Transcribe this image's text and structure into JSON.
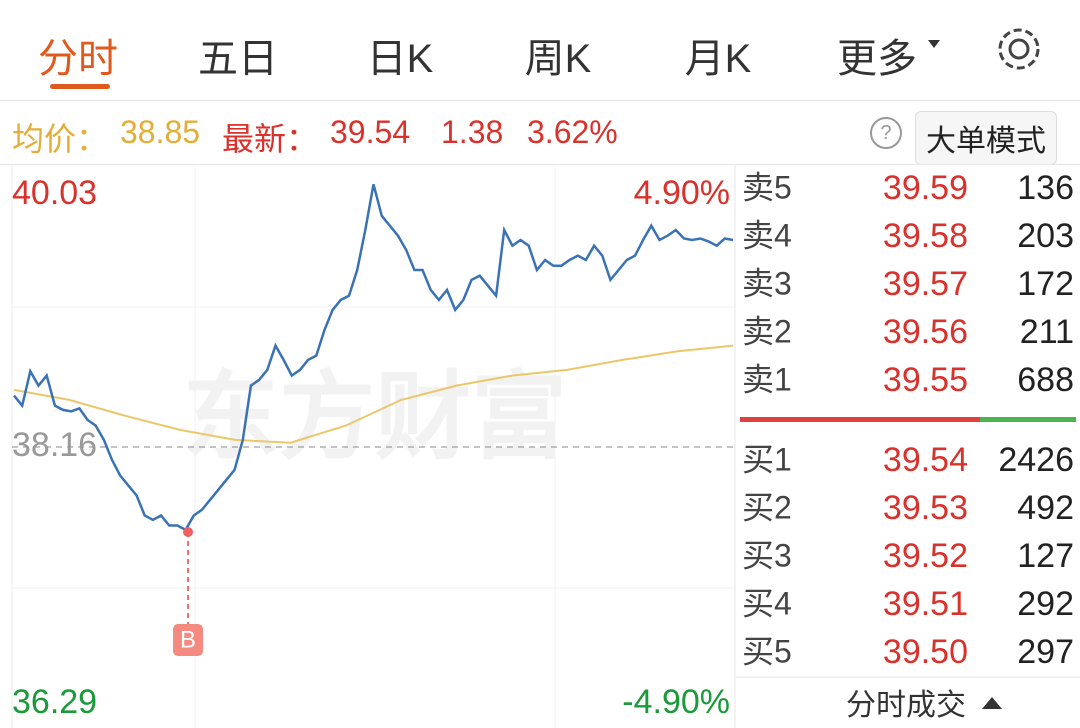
{
  "tabs": [
    "分时",
    "五日",
    "日K",
    "周K",
    "月K",
    "更多"
  ],
  "info": {
    "avg_label": "均价：",
    "avg": "38.85",
    "latest_label": "最新：",
    "latest": "39.54",
    "change": "1.38",
    "change_pct": "3.62%",
    "mode_button": "大单模式"
  },
  "chart_data": {
    "type": "line",
    "watermark": "东方财富",
    "marker": "B",
    "ylim": [
      36.29,
      40.03
    ],
    "yticks": [
      36.29,
      38.16,
      40.03
    ],
    "y2lim": [
      -4.9,
      4.9
    ],
    "y2ticks": [
      {
        "value": -4.9,
        "label": "-4.90%"
      },
      {
        "value": 4.9,
        "label": "4.90%"
      }
    ],
    "series": [
      {
        "color": "#3a72b6",
        "values": [
          38.52,
          38.45,
          38.69,
          38.59,
          38.66,
          38.45,
          38.42,
          38.41,
          38.43,
          38.35,
          38.31,
          38.21,
          38.07,
          37.96,
          37.89,
          37.82,
          37.68,
          37.65,
          37.68,
          37.61,
          37.61,
          37.58,
          37.68,
          37.72,
          37.79,
          37.86,
          37.93,
          38.0,
          38.21,
          38.59,
          38.63,
          38.7,
          38.87,
          38.77,
          38.66,
          38.7,
          38.77,
          38.8,
          38.98,
          39.12,
          39.19,
          39.22,
          39.4,
          39.68,
          40.0,
          39.78,
          39.71,
          39.64,
          39.54,
          39.4,
          39.4,
          39.26,
          39.19,
          39.26,
          39.12,
          39.19,
          39.33,
          39.36,
          39.29,
          39.22,
          39.68,
          39.57,
          39.61,
          39.57,
          39.4,
          39.47,
          39.43,
          39.43,
          39.47,
          39.5,
          39.47,
          39.57,
          39.5,
          39.33,
          39.4,
          39.47,
          39.5,
          39.61,
          39.71,
          39.61,
          39.64,
          39.68,
          39.62,
          39.61,
          39.62,
          39.6,
          39.57,
          39.62,
          39.61
        ]
      },
      {
        "color": "#ecc66a",
        "values": [
          38.56,
          38.49,
          38.38,
          38.28,
          38.21,
          38.19,
          38.31,
          38.49,
          38.59,
          38.66,
          38.7,
          38.77,
          38.83,
          38.87
        ]
      }
    ]
  },
  "order_book": {
    "asks": [
      {
        "label": "卖5",
        "price": "39.59",
        "volume": "136"
      },
      {
        "label": "卖4",
        "price": "39.58",
        "volume": "203"
      },
      {
        "label": "卖3",
        "price": "39.57",
        "volume": "172"
      },
      {
        "label": "卖2",
        "price": "39.56",
        "volume": "211"
      },
      {
        "label": "卖1",
        "price": "39.55",
        "volume": "688"
      }
    ],
    "bids": [
      {
        "label": "买1",
        "price": "39.54",
        "volume": "2426"
      },
      {
        "label": "买2",
        "price": "39.53",
        "volume": "492"
      },
      {
        "label": "买3",
        "price": "39.52",
        "volume": "127"
      },
      {
        "label": "买4",
        "price": "39.51",
        "volume": "292"
      },
      {
        "label": "买5",
        "price": "39.50",
        "volume": "297"
      }
    ]
  },
  "footer": "分时成交"
}
